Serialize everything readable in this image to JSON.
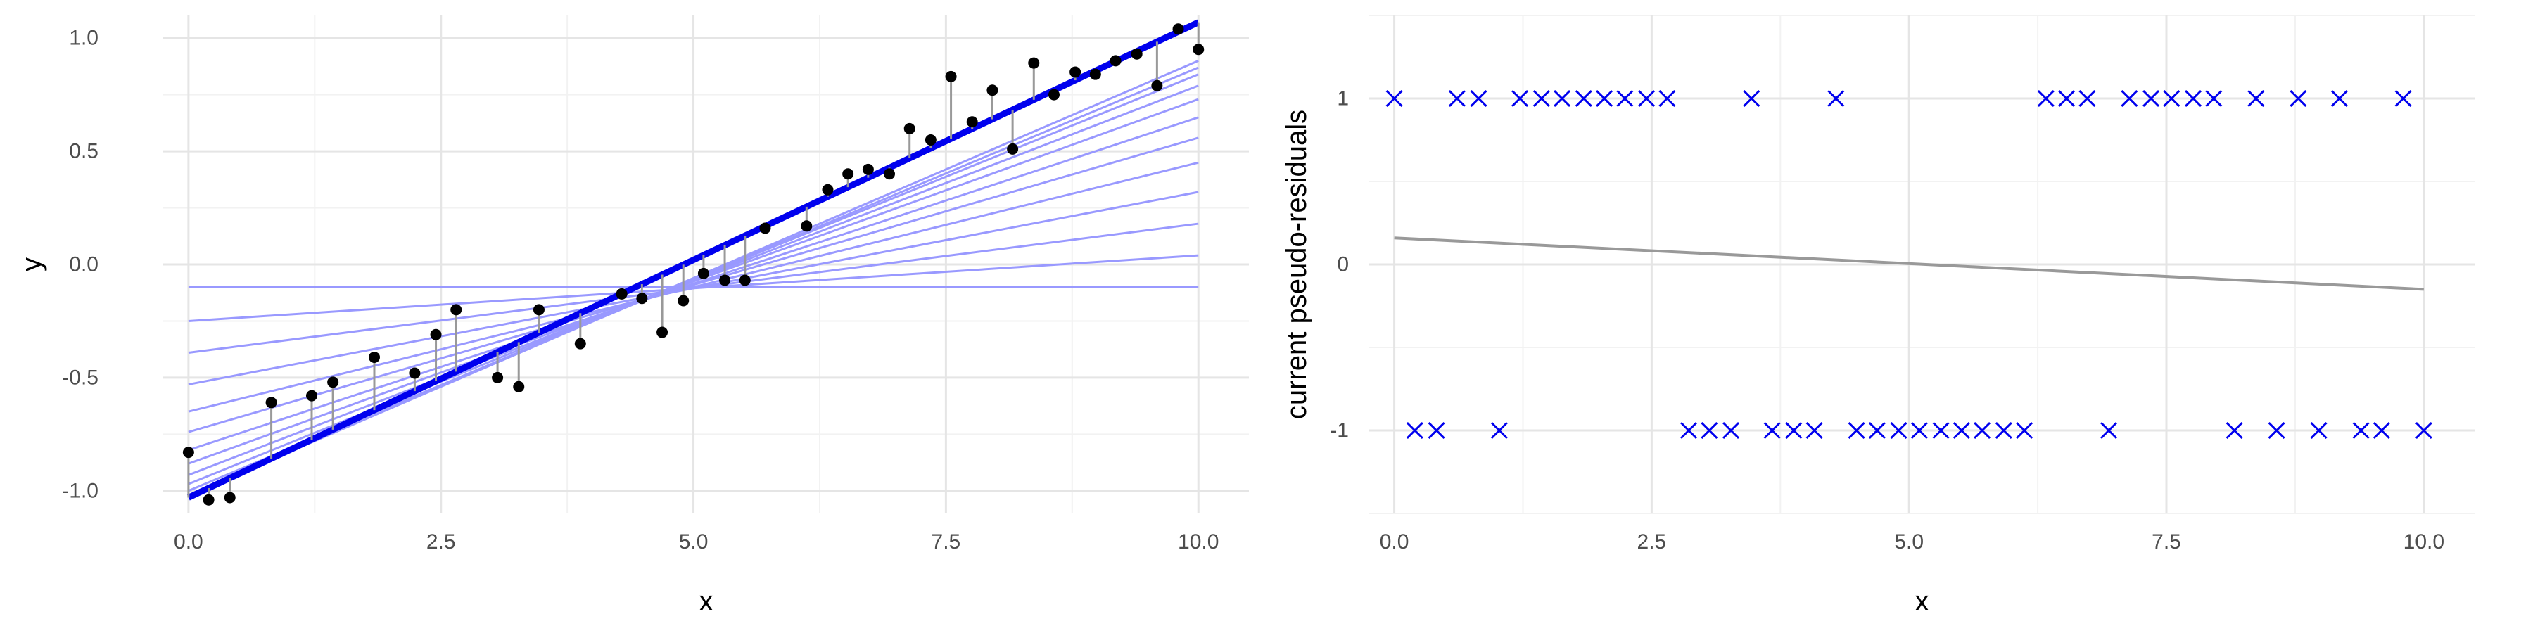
{
  "chart_data": [
    {
      "type": "scatter",
      "xlabel": "x",
      "ylabel": "y",
      "xlim": [
        -0.25,
        10.5
      ],
      "ylim": [
        -1.1,
        1.1
      ],
      "x_ticks": [
        0,
        2.5,
        5,
        7.5,
        10
      ],
      "x_tick_labels": [
        "0.0",
        "2.5",
        "5.0",
        "7.5",
        "10.0"
      ],
      "y_ticks": [
        -1,
        -0.5,
        0,
        0.5,
        1
      ],
      "y_tick_labels": [
        "-1.0",
        "-0.5",
        "0.0",
        "0.5",
        "1.0"
      ],
      "grid": true,
      "colors": {
        "points": "#000000",
        "fit_lines": "#9999ff",
        "final_fit": "#0000ee",
        "residuals": "#999999"
      },
      "points": {
        "x": [
          0.0,
          0.2,
          0.41,
          0.82,
          1.22,
          1.43,
          1.84,
          2.24,
          2.45,
          2.65,
          3.06,
          3.27,
          3.47,
          3.88,
          4.29,
          4.49,
          4.69,
          4.9,
          5.1,
          5.31,
          5.51,
          5.71,
          6.12,
          6.33,
          6.53,
          6.73,
          6.94,
          7.14,
          7.35,
          7.55,
          7.76,
          7.96,
          8.16,
          8.37,
          8.57,
          8.78,
          8.98,
          9.18,
          9.39,
          9.59,
          9.8,
          10.0
        ],
        "y": [
          -0.83,
          -1.04,
          -1.03,
          -0.61,
          -0.58,
          -0.52,
          -0.41,
          -0.48,
          -0.31,
          -0.2,
          -0.5,
          -0.54,
          -0.2,
          -0.35,
          -0.13,
          -0.15,
          -0.3,
          -0.16,
          -0.04,
          -0.07,
          -0.07,
          0.16,
          0.17,
          0.33,
          0.4,
          0.42,
          0.4,
          0.6,
          0.55,
          0.83,
          0.63,
          0.77,
          0.51,
          0.89,
          0.75,
          0.85,
          0.84,
          0.9,
          0.93,
          0.79,
          1.04,
          0.95
        ]
      },
      "fit_lines": [
        {
          "intercept": -0.1,
          "slope": 0.0
        },
        {
          "intercept": -0.25,
          "slope": 0.029
        },
        {
          "intercept": -0.39,
          "slope": 0.057
        },
        {
          "intercept": -0.53,
          "slope": 0.085
        },
        {
          "intercept": -0.65,
          "slope": 0.11
        },
        {
          "intercept": -0.74,
          "slope": 0.13
        },
        {
          "intercept": -0.82,
          "slope": 0.147
        },
        {
          "intercept": -0.88,
          "slope": 0.161
        },
        {
          "intercept": -0.93,
          "slope": 0.172
        },
        {
          "intercept": -0.97,
          "slope": 0.181
        },
        {
          "intercept": -1.0,
          "slope": 0.187
        },
        {
          "intercept": -1.02,
          "slope": 0.192
        }
      ],
      "final_fit": {
        "intercept": -1.03,
        "slope": 0.21
      }
    },
    {
      "type": "scatter",
      "xlabel": "x",
      "ylabel": "current pseudo-residuals",
      "xlim": [
        -0.25,
        10.5
      ],
      "ylim": [
        -1.5,
        1.5
      ],
      "x_ticks": [
        0,
        2.5,
        5,
        7.5,
        10
      ],
      "x_tick_labels": [
        "0.0",
        "2.5",
        "5.0",
        "7.5",
        "10.0"
      ],
      "y_ticks": [
        -1,
        0,
        1
      ],
      "y_tick_labels": [
        "-1",
        "0",
        "1"
      ],
      "grid": true,
      "colors": {
        "points": "#0000ee",
        "fit_line": "#999999"
      },
      "points": {
        "x": [
          0.0,
          0.2,
          0.41,
          0.61,
          0.82,
          1.02,
          1.22,
          1.43,
          1.63,
          1.84,
          2.04,
          2.24,
          2.45,
          2.65,
          2.86,
          3.06,
          3.27,
          3.47,
          3.67,
          3.88,
          4.08,
          4.29,
          4.49,
          4.69,
          4.9,
          5.1,
          5.31,
          5.51,
          5.71,
          5.92,
          6.12,
          6.33,
          6.53,
          6.73,
          6.94,
          7.14,
          7.35,
          7.55,
          7.76,
          7.96,
          8.16,
          8.37,
          8.57,
          8.78,
          8.98,
          9.18,
          9.39,
          9.59,
          9.8,
          10.0
        ],
        "y": [
          1,
          -1,
          -1,
          1,
          1,
          -1,
          1,
          1,
          1,
          1,
          1,
          1,
          1,
          1,
          -1,
          -1,
          -1,
          1,
          -1,
          -1,
          -1,
          1,
          -1,
          -1,
          -1,
          -1,
          -1,
          -1,
          -1,
          -1,
          -1,
          1,
          1,
          1,
          -1,
          1,
          1,
          1,
          1,
          1,
          -1,
          1,
          -1,
          1,
          -1,
          1,
          -1,
          -1,
          1,
          -1
        ]
      },
      "fit_line": {
        "x": [
          0,
          10
        ],
        "y": [
          0.16,
          -0.15
        ]
      }
    }
  ]
}
